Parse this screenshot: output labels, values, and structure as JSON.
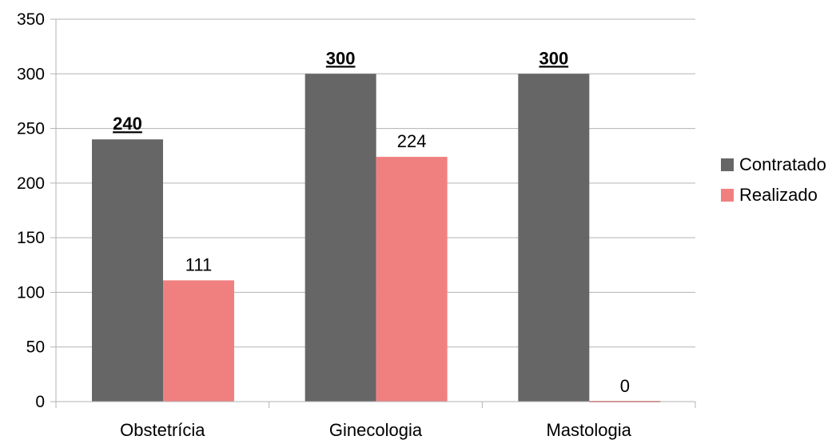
{
  "chart_data": {
    "type": "bar",
    "categories": [
      "Obstetrícia",
      "Ginecologia",
      "Mastologia"
    ],
    "series": [
      {
        "name": "Contratado",
        "values": [
          240,
          300,
          300
        ],
        "labels": [
          "240",
          "300",
          "300"
        ],
        "label_style": "bold-underline"
      },
      {
        "name": "Realizado",
        "values": [
          111,
          224,
          0
        ],
        "labels": [
          "111",
          "224",
          "0"
        ],
        "label_style": "normal"
      }
    ],
    "colors": {
      "Contratado": "#666666",
      "Realizado": "#f08080",
      "grid": "#b3b3b3",
      "axis": "#b3b3b3"
    },
    "ylim": [
      0,
      350
    ],
    "yticks": [
      0,
      50,
      100,
      150,
      200,
      250,
      300,
      350
    ],
    "ytick_labels": [
      "0",
      "50",
      "100",
      "150",
      "200",
      "250",
      "300",
      "350"
    ],
    "title": "",
    "xlabel": "",
    "ylabel": "",
    "grid": true,
    "legend_position": "right"
  }
}
